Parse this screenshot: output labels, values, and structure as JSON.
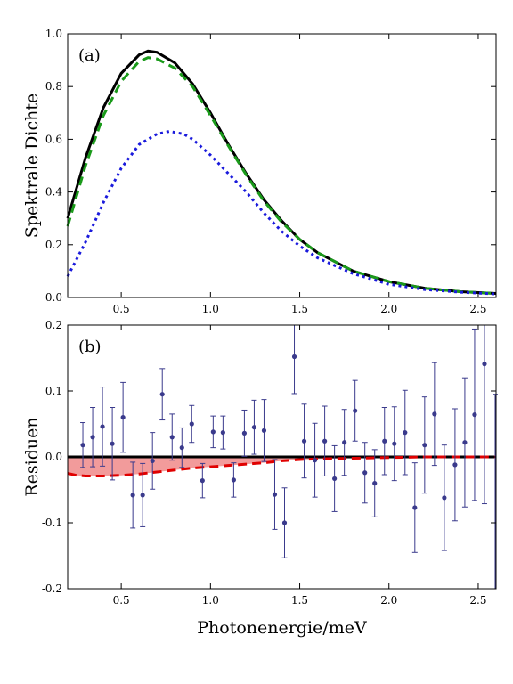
{
  "chart_data": [
    {
      "type": "line",
      "panel_label": "(a)",
      "xlabel": "",
      "ylabel": "Spektrale Dichte",
      "xlim": [
        0.2,
        2.6
      ],
      "ylim": [
        0.0,
        1.0
      ],
      "xticks": [
        "0.5",
        "1.0",
        "1.5",
        "2.0",
        "2.5"
      ],
      "yticks": [
        "0.0",
        "0.2",
        "0.4",
        "0.6",
        "0.8",
        "1.0"
      ],
      "grid": false,
      "legend": "none",
      "series": [
        {
          "style": "solid",
          "color": "#000000",
          "x": [
            0.2,
            0.3,
            0.4,
            0.5,
            0.6,
            0.65,
            0.7,
            0.8,
            0.9,
            1.0,
            1.1,
            1.2,
            1.3,
            1.4,
            1.5,
            1.6,
            1.8,
            2.0,
            2.2,
            2.4,
            2.6
          ],
          "y": [
            0.3,
            0.53,
            0.72,
            0.85,
            0.92,
            0.935,
            0.93,
            0.89,
            0.81,
            0.7,
            0.58,
            0.47,
            0.37,
            0.29,
            0.22,
            0.17,
            0.1,
            0.06,
            0.035,
            0.022,
            0.015
          ]
        },
        {
          "style": "dashed",
          "color": "#1a9a1a",
          "x": [
            0.2,
            0.3,
            0.4,
            0.5,
            0.6,
            0.65,
            0.7,
            0.8,
            0.9,
            1.0,
            1.1,
            1.2,
            1.3,
            1.4,
            1.5,
            1.6,
            1.8,
            2.0,
            2.2,
            2.4,
            2.6
          ],
          "y": [
            0.27,
            0.5,
            0.69,
            0.82,
            0.895,
            0.91,
            0.905,
            0.87,
            0.8,
            0.69,
            0.575,
            0.465,
            0.365,
            0.285,
            0.22,
            0.17,
            0.1,
            0.06,
            0.035,
            0.022,
            0.015
          ]
        },
        {
          "style": "dotted",
          "color": "#1a1adc",
          "x": [
            0.2,
            0.3,
            0.4,
            0.5,
            0.6,
            0.7,
            0.77,
            0.85,
            0.9,
            1.0,
            1.1,
            1.2,
            1.3,
            1.4,
            1.5,
            1.6,
            1.8,
            2.0,
            2.2,
            2.4,
            2.6
          ],
          "y": [
            0.08,
            0.21,
            0.36,
            0.49,
            0.58,
            0.62,
            0.63,
            0.62,
            0.6,
            0.54,
            0.47,
            0.4,
            0.32,
            0.25,
            0.195,
            0.15,
            0.09,
            0.05,
            0.03,
            0.02,
            0.013
          ]
        }
      ]
    },
    {
      "type": "scatter",
      "panel_label": "(b)",
      "xlabel": "Photonenergie/meV",
      "ylabel": "Residuen",
      "xlim": [
        0.2,
        2.6
      ],
      "ylim": [
        -0.2,
        0.2
      ],
      "xticks": [
        "0.5",
        "1.0",
        "1.5",
        "2.0",
        "2.5"
      ],
      "yticks": [
        "-0.2",
        "-0.1",
        "0.0",
        "0.1",
        "0.2"
      ],
      "grid": false,
      "legend": "none",
      "zero_line_color": "#000000",
      "fill_color": "#f08a8a",
      "points_color": "#3a3a8c",
      "points": {
        "x": [
          0.285,
          0.34,
          0.395,
          0.45,
          0.51,
          0.565,
          0.62,
          0.675,
          0.73,
          0.785,
          0.84,
          0.895,
          0.955,
          1.015,
          1.07,
          1.13,
          1.19,
          1.245,
          1.3,
          1.36,
          1.415,
          1.47,
          1.525,
          1.585,
          1.64,
          1.695,
          1.75,
          1.81,
          1.865,
          1.92,
          1.975,
          2.03,
          2.09,
          2.145,
          2.2,
          2.255,
          2.31,
          2.37,
          2.425,
          2.48,
          2.535,
          2.595
        ],
        "y": [
          0.018,
          0.03,
          0.046,
          0.02,
          0.06,
          -0.058,
          -0.058,
          -0.006,
          0.095,
          0.03,
          0.014,
          0.05,
          -0.036,
          0.038,
          0.037,
          -0.035,
          0.036,
          0.045,
          0.04,
          -0.057,
          -0.1,
          0.152,
          0.024,
          -0.005,
          0.024,
          -0.033,
          0.022,
          0.07,
          -0.024,
          -0.04,
          0.024,
          0.02,
          0.037,
          -0.077,
          0.018,
          0.065,
          -0.062,
          -0.012,
          0.022,
          0.064,
          0.141,
          -0.24
        ],
        "err": [
          0.034,
          0.045,
          0.06,
          0.055,
          0.053,
          0.05,
          0.048,
          0.043,
          0.039,
          0.035,
          0.03,
          0.028,
          0.026,
          0.024,
          0.025,
          0.026,
          0.035,
          0.041,
          0.047,
          0.053,
          0.053,
          0.056,
          0.056,
          0.056,
          0.053,
          0.05,
          0.05,
          0.046,
          0.046,
          0.051,
          0.051,
          0.056,
          0.064,
          0.068,
          0.073,
          0.078,
          0.08,
          0.085,
          0.098,
          0.13,
          0.212,
          0.335
        ]
      },
      "fit_curve": {
        "style": "dashed",
        "color": "#e00000",
        "x": [
          0.2,
          0.25,
          0.3,
          0.35,
          0.4,
          0.5,
          0.6,
          0.7,
          0.8,
          0.9,
          1.0,
          1.1,
          1.2,
          1.3,
          1.4,
          1.5,
          1.6,
          1.8,
          2.0,
          2.2,
          2.4,
          2.6
        ],
        "y": [
          -0.025,
          -0.028,
          -0.029,
          -0.029,
          -0.029,
          -0.028,
          -0.026,
          -0.023,
          -0.02,
          -0.017,
          -0.015,
          -0.013,
          -0.011,
          -0.009,
          -0.006,
          -0.004,
          -0.003,
          -0.002,
          -0.001,
          0.0,
          0.0,
          0.0
        ]
      }
    }
  ]
}
